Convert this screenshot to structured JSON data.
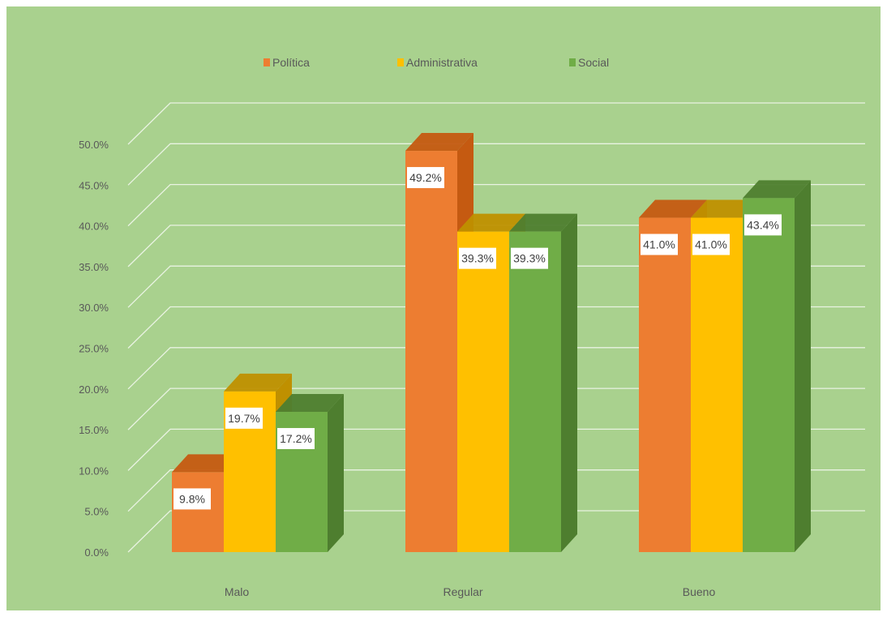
{
  "chart_data": {
    "type": "bar",
    "categories": [
      "Malo",
      "Regular",
      "Bueno"
    ],
    "series": [
      {
        "name": "Política",
        "values": [
          9.8,
          49.2,
          41.0
        ],
        "labels": [
          "9.8%",
          "49.2%",
          "41.0%"
        ],
        "color": "#ED7D31",
        "side": "#C55A11"
      },
      {
        "name": "Administrativa",
        "values": [
          19.7,
          39.3,
          41.0
        ],
        "labels": [
          "19.7%",
          "39.3%",
          "41.0%"
        ],
        "color": "#FFC000",
        "side": "#BF9000"
      },
      {
        "name": "Social",
        "values": [
          17.2,
          39.3,
          43.4
        ],
        "labels": [
          "17.2%",
          "39.3%",
          "43.4%"
        ],
        "color": "#70AD47",
        "side": "#4E7E2F"
      }
    ],
    "ylim": [
      0,
      50
    ],
    "yticks": [
      "0.0%",
      "5.0%",
      "10.0%",
      "15.0%",
      "20.0%",
      "25.0%",
      "30.0%",
      "35.0%",
      "40.0%",
      "45.0%",
      "50.0%"
    ],
    "grid": true,
    "legend": "top",
    "background": "#A9D18E"
  }
}
